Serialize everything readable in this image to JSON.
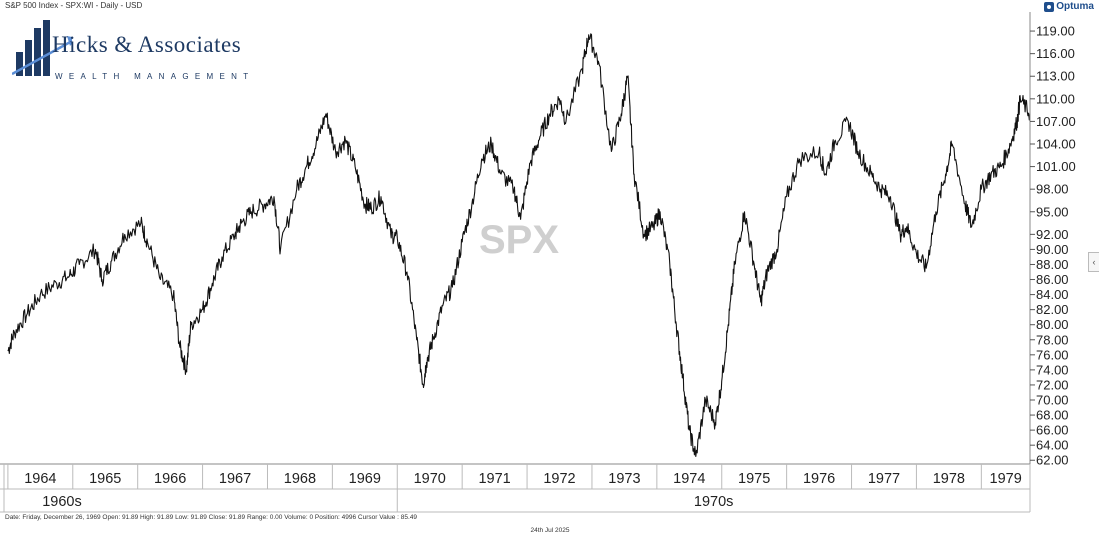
{
  "header": {
    "title": "S&P 500 Index - SPX:WI - Daily - USD",
    "brand": "Optuma"
  },
  "logo": {
    "name": "Hicks & Associates",
    "tagline": "WEALTH MANAGEMENT"
  },
  "colors": {
    "line": "#111111",
    "grid": "#dddddd",
    "axis": "#888888",
    "watermark": "#cfcfcf",
    "logo_blue": "#1e3a63",
    "logo_light": "#5b8ed6"
  },
  "chart_data": {
    "type": "line",
    "title": "S&P 500 Index - SPX:WI - Daily - USD",
    "watermark": "SPX",
    "xlabel": "",
    "ylabel": "",
    "x_range": [
      1963.94,
      1979.75
    ],
    "ylim": [
      61.5,
      121
    ],
    "yticks": [
      62,
      64,
      66,
      68,
      70,
      72,
      74,
      76,
      78,
      80,
      82,
      84,
      86,
      88,
      90,
      92,
      95,
      98,
      101,
      104,
      107,
      110,
      113,
      116,
      119
    ],
    "year_labels": [
      "1964",
      "1965",
      "1966",
      "1967",
      "1968",
      "1969",
      "1970",
      "1971",
      "1972",
      "1973",
      "1974",
      "1975",
      "1976",
      "1977",
      "1978",
      "1979"
    ],
    "decade_labels": [
      {
        "label": "1960s",
        "start": 1963.94,
        "end": 1970.0
      },
      {
        "label": "1970s",
        "start": 1970.0,
        "end": 1979.75
      }
    ],
    "grid": false,
    "series": [
      {
        "x": [
          1964.0,
          1964.1,
          1964.3,
          1964.5,
          1964.75,
          1964.95,
          1965.1,
          1965.35,
          1965.45,
          1965.6,
          1965.8,
          1966.05,
          1966.15,
          1966.35,
          1966.55,
          1966.65,
          1966.75,
          1966.82,
          1967.0,
          1967.15,
          1967.3,
          1967.5,
          1967.6,
          1967.75,
          1967.95,
          1968.1,
          1968.2,
          1968.45,
          1968.6,
          1968.75,
          1968.9,
          1969.05,
          1969.2,
          1969.35,
          1969.5,
          1969.6,
          1969.75,
          1969.9,
          1970.0,
          1970.15,
          1970.3,
          1970.4,
          1970.45,
          1970.55,
          1970.7,
          1970.85,
          1971.0,
          1971.15,
          1971.3,
          1971.45,
          1971.6,
          1971.8,
          1971.9,
          1972.05,
          1972.2,
          1972.35,
          1972.5,
          1972.6,
          1972.85,
          1972.95,
          1973.1,
          1973.3,
          1973.45,
          1973.55,
          1973.65,
          1973.8,
          1973.95,
          1974.05,
          1974.2,
          1974.3,
          1974.4,
          1974.5,
          1974.6,
          1974.75,
          1974.9,
          1975.0,
          1975.1,
          1975.2,
          1975.35,
          1975.5,
          1975.6,
          1975.7,
          1975.85,
          1976.0,
          1976.2,
          1976.5,
          1976.6,
          1976.75,
          1976.95,
          1977.1,
          1977.3,
          1977.45,
          1977.6,
          1977.75,
          1977.85,
          1978.0,
          1978.15,
          1978.3,
          1978.45,
          1978.55,
          1978.75,
          1978.85,
          1979.0,
          1979.15,
          1979.3,
          1979.45,
          1979.55,
          1979.6,
          1979.75
        ],
        "y": [
          76.5,
          79.0,
          81.5,
          84.0,
          85.5,
          86.5,
          88.0,
          90.0,
          86.0,
          88.5,
          92.0,
          93.5,
          91.0,
          86.0,
          84.0,
          77.0,
          74.0,
          80.0,
          82.0,
          85.5,
          89.0,
          92.0,
          93.5,
          95.0,
          96.0,
          97.0,
          90.0,
          98.0,
          101.0,
          104.0,
          108.0,
          103.0,
          104.5,
          101.0,
          96.0,
          95.5,
          97.0,
          92.0,
          91.5,
          87.0,
          78.0,
          72.0,
          75.0,
          78.0,
          82.5,
          85.0,
          91.0,
          96.0,
          102.0,
          104.0,
          100.0,
          98.0,
          94.0,
          101.5,
          105.0,
          108.0,
          110.0,
          107.0,
          114.0,
          118.5,
          115.0,
          103.0,
          108.0,
          113.0,
          100.0,
          92.0,
          93.0,
          95.0,
          88.0,
          80.0,
          73.0,
          66.0,
          62.5,
          70.0,
          67.0,
          72.5,
          80.0,
          88.0,
          95.0,
          88.0,
          83.0,
          87.0,
          90.0,
          97.0,
          102.0,
          103.0,
          100.0,
          104.5,
          107.0,
          103.0,
          100.0,
          98.0,
          97.0,
          92.0,
          93.0,
          89.5,
          87.5,
          95.0,
          100.0,
          104.0,
          96.0,
          93.0,
          98.0,
          100.0,
          101.0,
          104.0,
          107.0,
          110.0,
          108.0
        ]
      }
    ]
  },
  "footer": {
    "status": "Date: Friday, December 26, 1969 Open: 91.89 High: 91.89 Low: 91.89 Close: 91.89 Range: 0.00 Volume: 0 Position: 4996 Cursor Value : 85.49",
    "date": "24th Jul 2025",
    "collapse_glyph": "‹"
  }
}
